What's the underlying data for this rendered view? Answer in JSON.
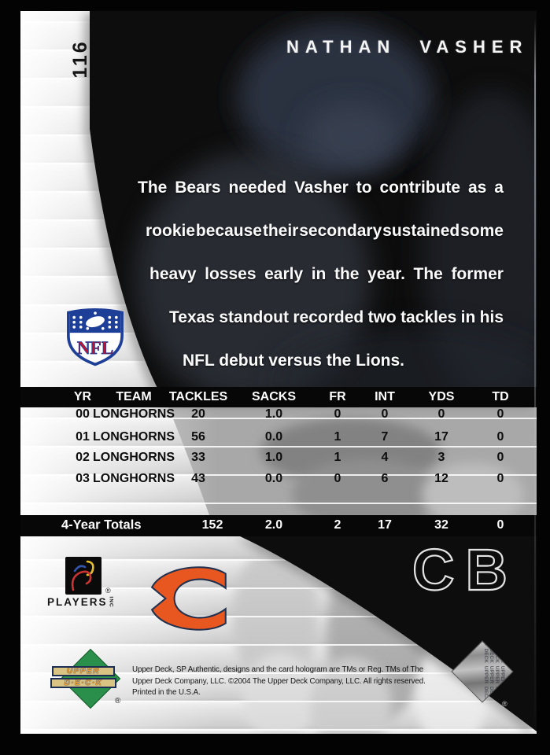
{
  "card_number": "116",
  "player_name": "NATHAN VASHER",
  "position": "CB",
  "bio_lines": [
    "The Bears needed Vasher to contribute as a",
    "rookie because their secondary sustained some",
    "heavy losses early in the year. The former",
    "Texas standout recorded two tackles in his",
    "NFL debut versus the Lions."
  ],
  "stats": {
    "headers": [
      "YR",
      "TEAM",
      "TACKLES",
      "SACKS",
      "FR",
      "INT",
      "YDS",
      "TD"
    ],
    "rows": [
      [
        "00",
        "LONGHORNS",
        "20",
        "1.0",
        "0",
        "0",
        "0",
        "0"
      ],
      [
        "01",
        "LONGHORNS",
        "56",
        "0.0",
        "1",
        "7",
        "17",
        "0"
      ],
      [
        "02",
        "LONGHORNS",
        "33",
        "1.0",
        "1",
        "4",
        "3",
        "0"
      ],
      [
        "03",
        "LONGHORNS",
        "43",
        "0.0",
        "0",
        "6",
        "12",
        "0"
      ]
    ],
    "totals_label": "4-Year Totals",
    "totals": [
      "152",
      "2.0",
      "2",
      "17",
      "32",
      "0"
    ]
  },
  "nfl_logo_text": "NFL",
  "footer": {
    "players_inc_label": "PLAYERS",
    "players_inc_suffix": "INC",
    "registered_mark": "®",
    "upper_deck_line1": "UPPER",
    "upper_deck_line2": "D·E·C·K",
    "hologram_pattern": "UPPER DECK UPPER DECK UPPER DECK UPPER DECK UPPER DECK UPPER DECK UPPER DECK UPPER DECK"
  },
  "legal_lines": [
    "Upper Deck, SP Authentic, designs and the card hologram are TMs or Reg. TMs of The",
    "Upper Deck Company, LLC. ©2004 The Upper Deck Company, LLC. All rights reserved.",
    "Printed in the U.S.A."
  ],
  "colors": {
    "bears_orange": "#e8571f",
    "nfl_red": "#c8102e",
    "nfl_blue": "#1e3f97",
    "ud_green": "#2a8f4a",
    "ud_gold": "#eda23a",
    "photo_black": "#07090f"
  }
}
